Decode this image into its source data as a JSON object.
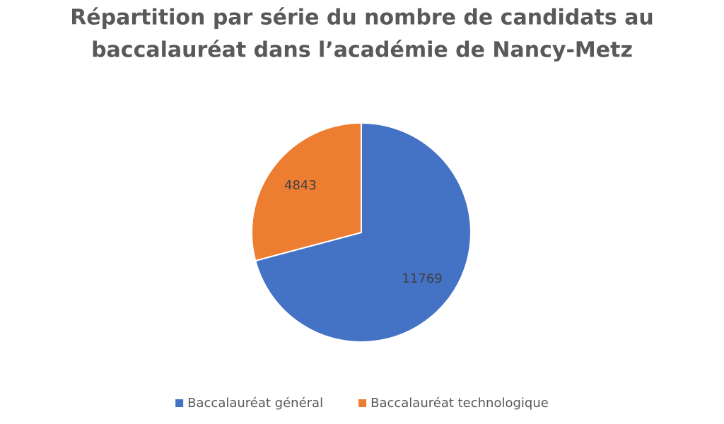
{
  "chart_data": {
    "type": "pie",
    "title": [
      "Répartition par série du nombre de candidats au",
      "baccalauréat dans l’académie de Nancy-Metz"
    ],
    "categories": [
      "Baccalauréat général",
      "Baccalauréat technologique"
    ],
    "values": [
      11769,
      4843
    ],
    "colors": [
      "#4472c4",
      "#ed7d31"
    ],
    "legend": "bottom"
  }
}
